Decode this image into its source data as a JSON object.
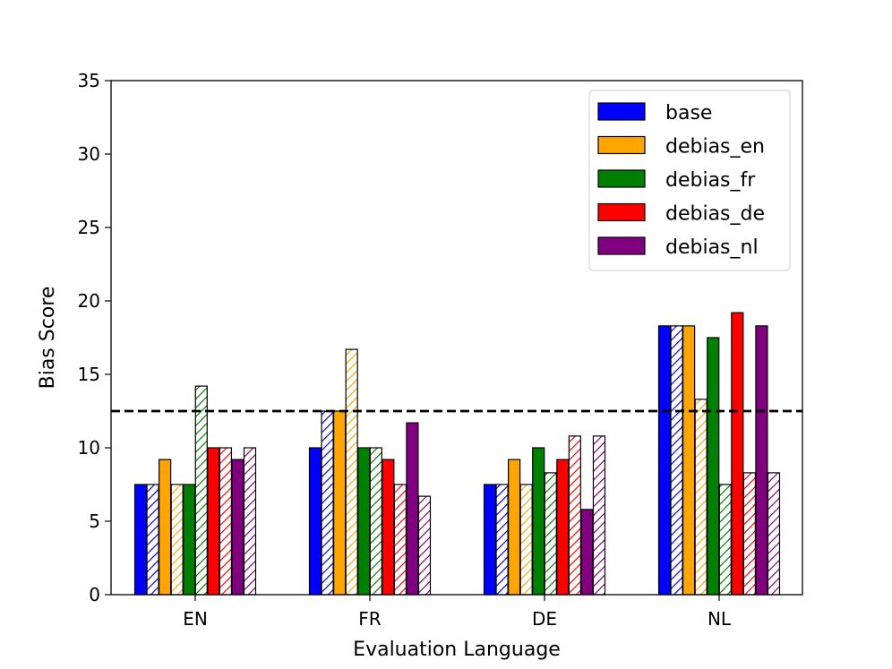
{
  "chart_data": {
    "type": "bar",
    "title": "",
    "xlabel": "Evaluation Language",
    "ylabel": "Bias Score",
    "categories": [
      "EN",
      "FR",
      "DE",
      "NL"
    ],
    "ylim": [
      0,
      35
    ],
    "yticks": [
      0,
      5,
      10,
      15,
      20,
      25,
      30,
      35
    ],
    "grid": false,
    "legend_position": "top-right",
    "reference_line": {
      "y": 12.5,
      "style": "dashed",
      "color": "#000000"
    },
    "bar_variants": [
      "solid",
      "hatched"
    ],
    "series": [
      {
        "name": "base",
        "color": "#0000ff",
        "solid": [
          7.5,
          10.0,
          7.5,
          18.3
        ],
        "hatched": [
          7.5,
          12.5,
          7.5,
          18.3
        ]
      },
      {
        "name": "debias_en",
        "color": "#ffa500",
        "solid": [
          9.2,
          12.5,
          9.2,
          18.3
        ],
        "hatched": [
          7.5,
          16.7,
          7.5,
          13.3
        ]
      },
      {
        "name": "debias_fr",
        "color": "#008000",
        "solid": [
          7.5,
          10.0,
          10.0,
          17.5
        ],
        "hatched": [
          14.2,
          10.0,
          8.3,
          7.5
        ]
      },
      {
        "name": "debias_de",
        "color": "#ff0000",
        "solid": [
          10.0,
          9.2,
          9.2,
          19.2
        ],
        "hatched": [
          10.0,
          7.5,
          10.8,
          8.3
        ]
      },
      {
        "name": "debias_nl",
        "color": "#800080",
        "solid": [
          9.2,
          11.7,
          5.8,
          18.3
        ],
        "hatched": [
          10.0,
          6.7,
          10.8,
          8.3
        ]
      }
    ]
  }
}
